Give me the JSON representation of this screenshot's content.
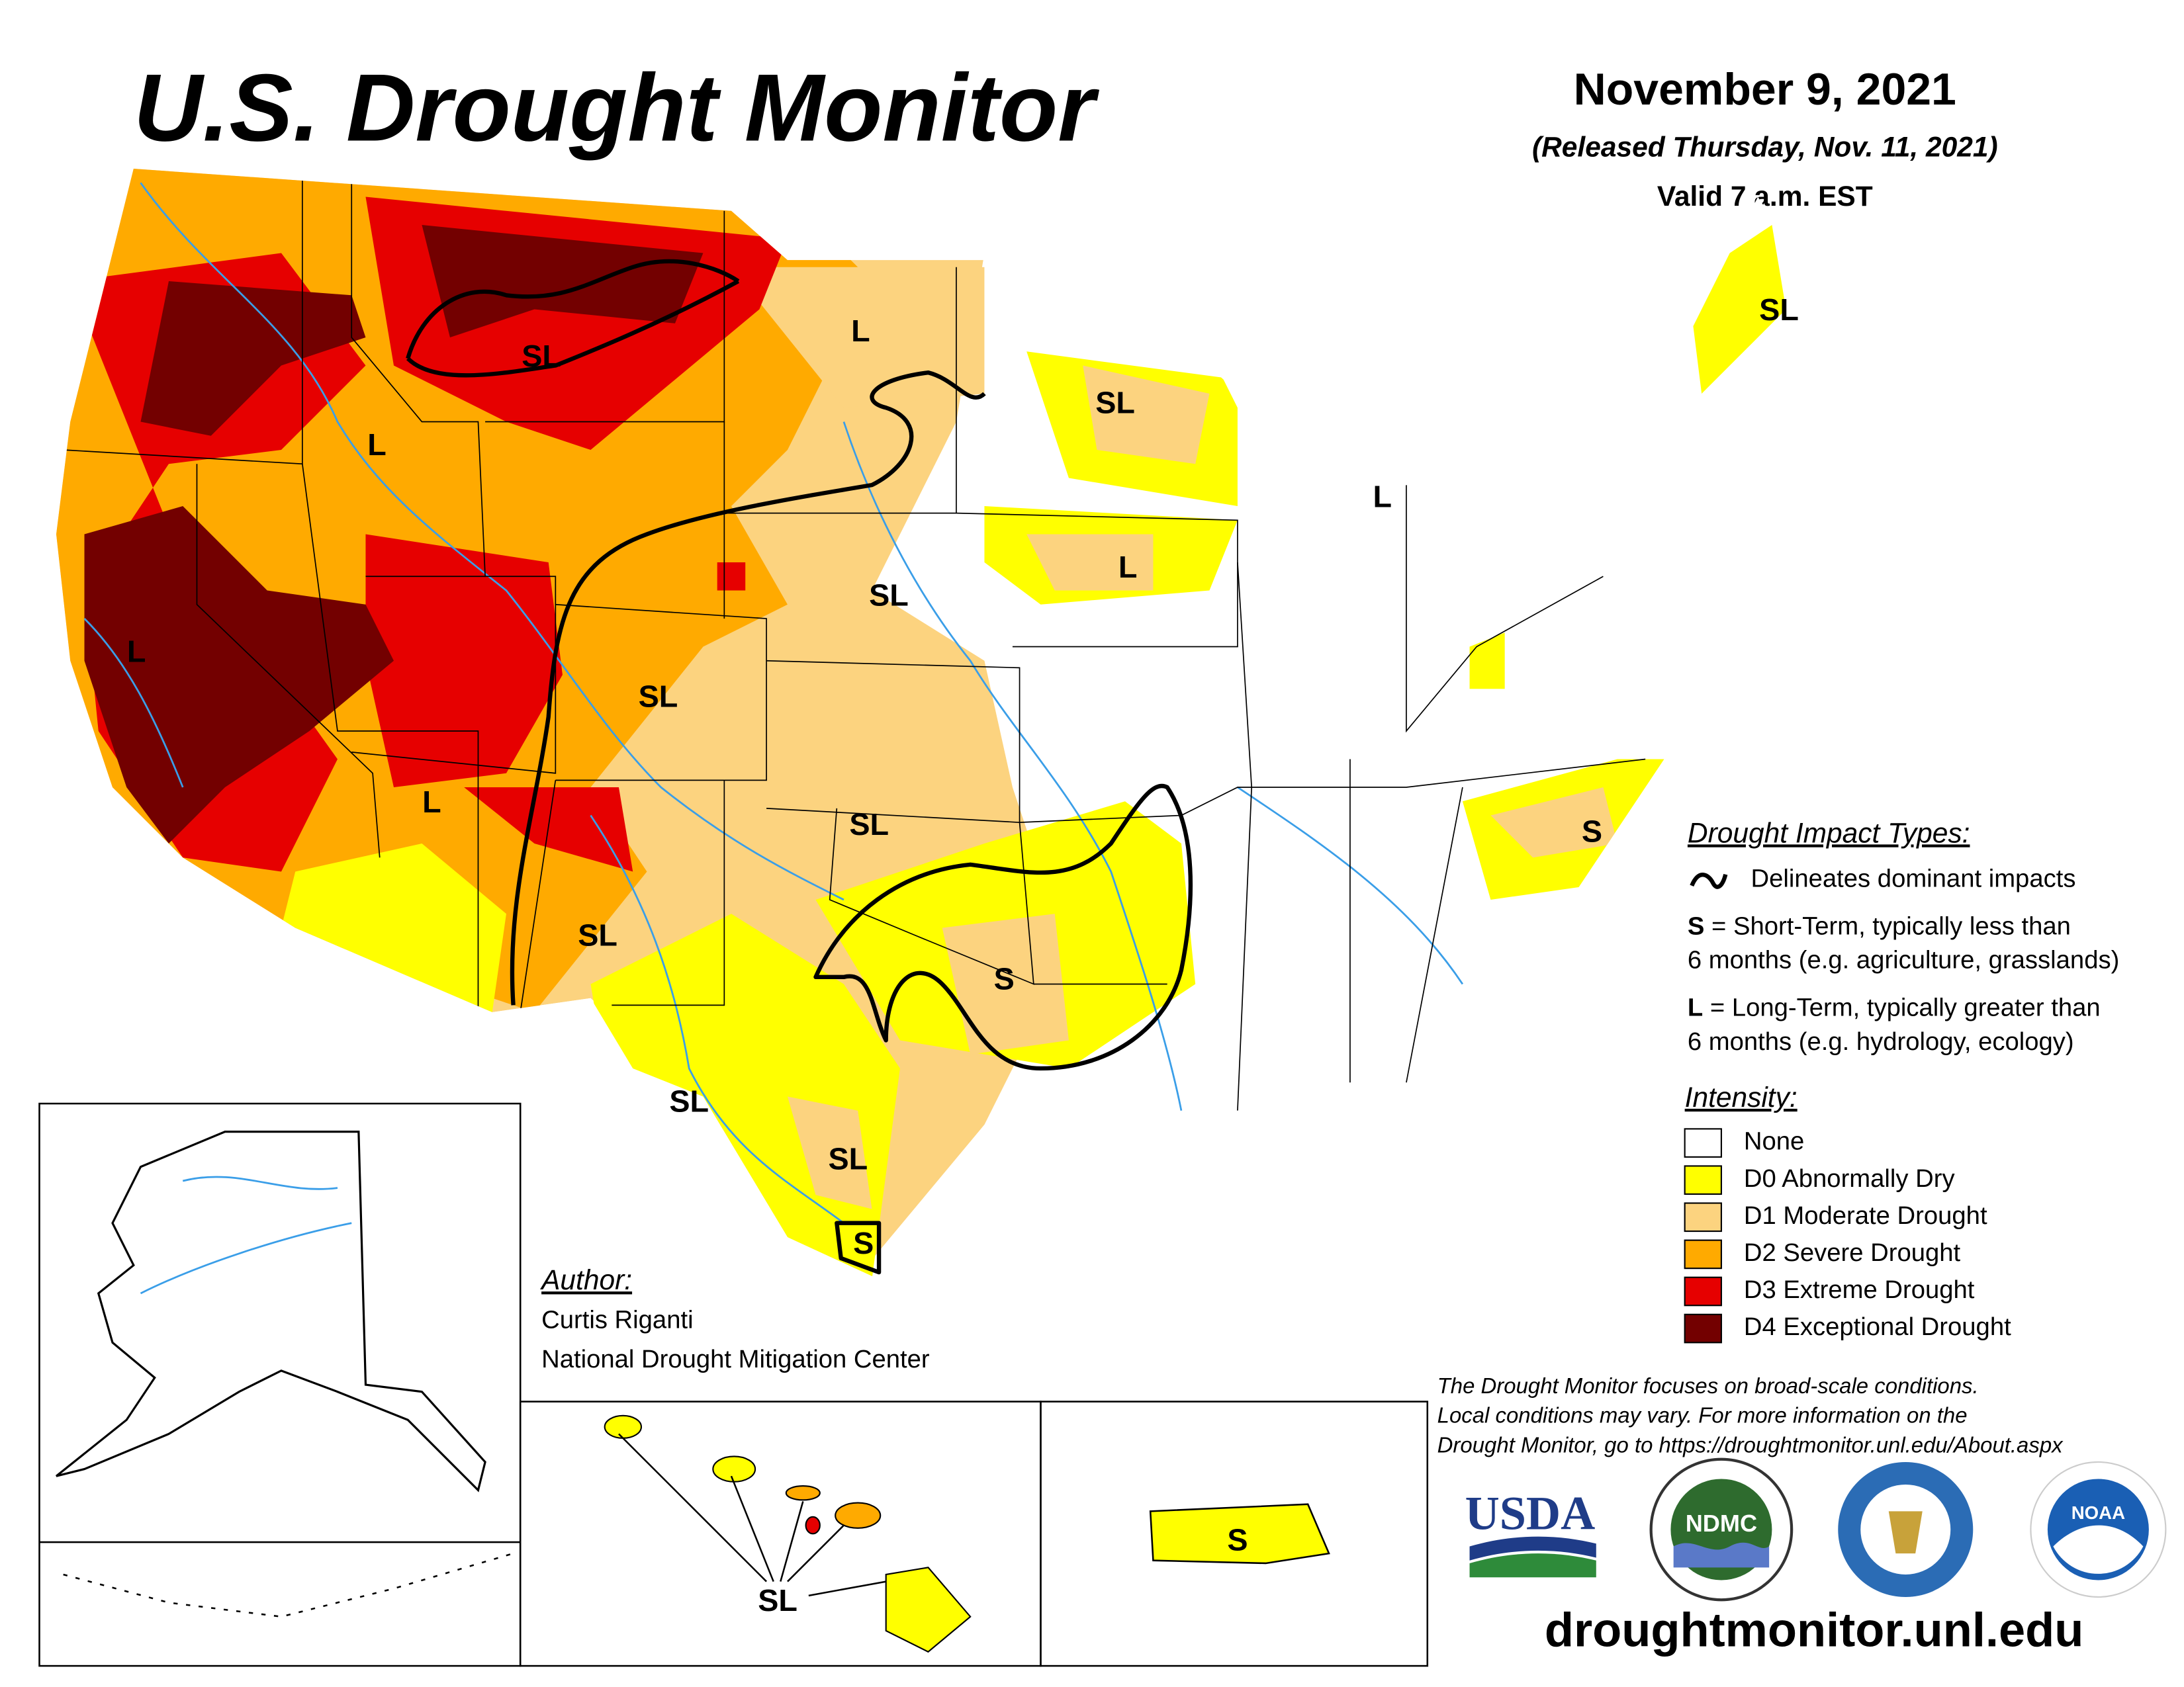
{
  "header": {
    "title": "U.S. Drought Monitor",
    "date": "November 9, 2021",
    "released": "(Released Thursday, Nov. 11, 2021)",
    "valid": "Valid 7 a.m. EST"
  },
  "impact_legend": {
    "title": "Drought Impact Types:",
    "line": "Delineates dominant impacts",
    "short_term": [
      "S",
      "= Short-Term, typically less than",
      "6 months (e.g. agriculture, grasslands)"
    ],
    "long_term": [
      "L",
      "= Long-Term, typically greater than",
      "6 months (e.g. hydrology, ecology)"
    ]
  },
  "intensity_legend": {
    "title": "Intensity:",
    "items": [
      {
        "label": "None",
        "color": "#ffffff"
      },
      {
        "label": "D0 Abnormally Dry",
        "color": "#ffff00"
      },
      {
        "label": "D1 Moderate Drought",
        "color": "#fcd37f"
      },
      {
        "label": "D2 Severe Drought",
        "color": "#ffaa00"
      },
      {
        "label": "D3 Extreme Drought",
        "color": "#e60000"
      },
      {
        "label": "D4 Exceptional Drought",
        "color": "#730000"
      }
    ]
  },
  "map_labels": [
    "SL",
    "L",
    "L",
    "SL",
    "L",
    "L",
    "SL",
    "L",
    "SL",
    "SL",
    "S",
    "L",
    "SL",
    "S",
    "SL",
    "SL",
    "S",
    "SL",
    "SL",
    "S"
  ],
  "author": {
    "heading": "Author:",
    "name": "Curtis Riganti",
    "org": "National Drought Mitigation Center"
  },
  "disclaimer": [
    "The Drought Monitor focuses on broad-scale conditions.",
    "Local conditions may vary. For more information on the",
    "Drought Monitor, go to https://droughtmonitor.unl.edu/About.aspx"
  ],
  "logos": {
    "usda": "USDA",
    "ndmc": "NDMC",
    "noaa": "NOAA"
  },
  "url": "droughtmonitor.unl.edu"
}
